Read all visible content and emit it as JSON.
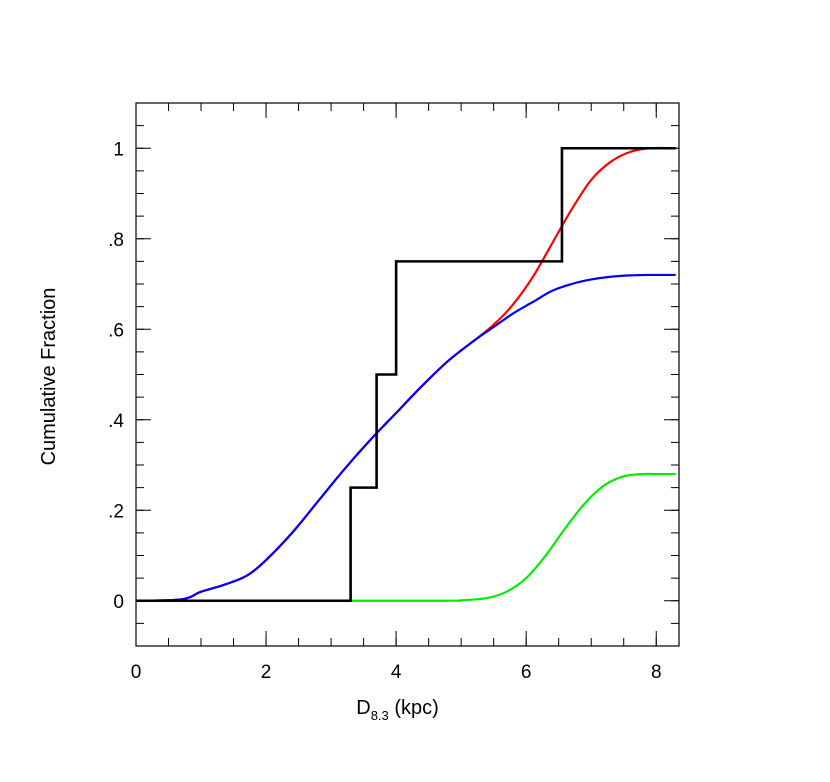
{
  "chart_data": {
    "type": "line",
    "xlabel": {
      "main": "D",
      "sub": "8.3",
      "rest": " (kpc)"
    },
    "ylabel": "Cumulative Fraction",
    "xlim": [
      0,
      8.35
    ],
    "ylim": [
      -0.1,
      1.1
    ],
    "x_ticks": [
      0,
      2,
      4,
      6,
      8
    ],
    "x_tick_labels": [
      "0",
      "2",
      "4",
      "6",
      "8"
    ],
    "y_ticks": [
      0,
      0.2,
      0.4,
      0.6,
      0.8,
      1
    ],
    "y_tick_labels": [
      "0",
      ".2",
      ".4",
      ".6",
      ".8",
      "1"
    ],
    "x_minor_step": 0.5,
    "y_minor_step": 0.05,
    "grid": false,
    "series": [
      {
        "color": "#ff0000",
        "x": [
          0,
          0.7,
          1.0,
          1.35,
          1.7,
          2.0,
          2.4,
          2.8,
          3.2,
          3.6,
          4.0,
          4.4,
          4.8,
          5.2,
          5.5,
          5.8,
          6.1,
          6.4,
          6.7,
          7.0,
          7.3,
          7.6,
          7.9,
          8.3
        ],
        "y": [
          0,
          0.003,
          0.02,
          0.035,
          0.055,
          0.09,
          0.15,
          0.22,
          0.29,
          0.355,
          0.415,
          0.475,
          0.53,
          0.575,
          0.61,
          0.655,
          0.715,
          0.79,
          0.865,
          0.93,
          0.97,
          0.992,
          1.0,
          1.0
        ]
      },
      {
        "color": "#0000ff",
        "x": [
          0,
          0.7,
          1.0,
          1.35,
          1.7,
          2.0,
          2.4,
          2.8,
          3.2,
          3.6,
          4.0,
          4.4,
          4.8,
          5.2,
          5.5,
          5.8,
          6.1,
          6.4,
          6.7,
          7.0,
          7.3,
          7.6,
          7.9,
          8.3
        ],
        "y": [
          0,
          0.003,
          0.02,
          0.035,
          0.055,
          0.09,
          0.15,
          0.22,
          0.29,
          0.355,
          0.415,
          0.475,
          0.53,
          0.575,
          0.605,
          0.635,
          0.66,
          0.685,
          0.7,
          0.71,
          0.716,
          0.719,
          0.72,
          0.72
        ]
      },
      {
        "color": "#00ee00",
        "x": [
          0,
          4.5,
          5.0,
          5.4,
          5.7,
          6.0,
          6.3,
          6.6,
          6.9,
          7.2,
          7.5,
          7.8,
          8.0,
          8.3
        ],
        "y": [
          0,
          0,
          0.001,
          0.006,
          0.02,
          0.05,
          0.1,
          0.16,
          0.215,
          0.255,
          0.275,
          0.28,
          0.28,
          0.28
        ]
      },
      {
        "color": "#000000",
        "step": true,
        "x": [
          0,
          3.3,
          3.3,
          3.7,
          3.7,
          4.0,
          4.0,
          6.55,
          6.55,
          8.3
        ],
        "y": [
          0,
          0,
          0.25,
          0.25,
          0.5,
          0.5,
          0.75,
          0.75,
          1.0,
          1.0
        ]
      }
    ]
  }
}
